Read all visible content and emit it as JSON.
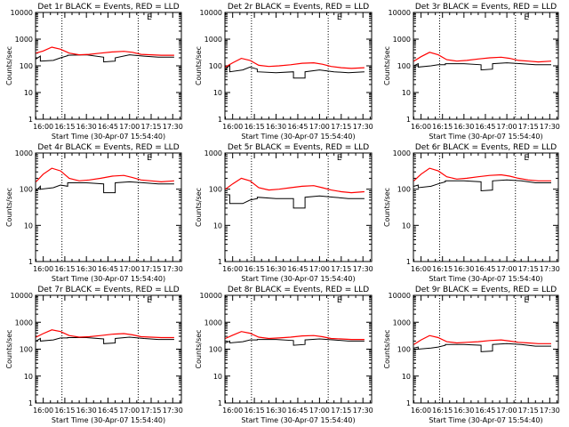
{
  "figure": {
    "xlabel": "Start Time (30-Apr-07 15:54:40)",
    "colors": {
      "events": "#000000",
      "lld": "#ff0000",
      "frame": "#000000",
      "background": "#ffffff"
    }
  },
  "chart_data": [
    {
      "type": "line",
      "title": "Det 1r BLACK = Events, RED = LLD",
      "ylabel": "Counts/sec",
      "yscale": "log",
      "ylim": [
        1,
        10000
      ],
      "yticks": [
        1,
        10,
        100,
        1000,
        10000
      ],
      "yticklabels": [
        "1",
        "10",
        "100",
        "1000",
        "10000"
      ],
      "xlim": [
        "15:54:40",
        "17:36:00"
      ],
      "xticks": [
        "16:00",
        "16:15",
        "16:30",
        "16:45",
        "17:00",
        "17:15",
        "17:30"
      ],
      "vlines": [
        "16:13",
        "17:06"
      ],
      "marker_label": "E",
      "marker_x": "17:12",
      "series": [
        {
          "name": "Events",
          "color": "#000000",
          "x": [
            "15:55",
            "15:58",
            "15:58",
            "16:07",
            "16:12",
            "16:17",
            "16:17",
            "16:30",
            "16:42",
            "16:42",
            "16:50",
            "16:50",
            "17:00",
            "17:10",
            "17:20",
            "17:31"
          ],
          "values": [
            180,
            230,
            150,
            160,
            200,
            240,
            250,
            260,
            210,
            140,
            150,
            200,
            260,
            230,
            210,
            210
          ]
        },
        {
          "name": "LLD",
          "color": "#ff0000",
          "x": [
            "15:55",
            "16:00",
            "16:06",
            "16:12",
            "16:18",
            "16:25",
            "16:32",
            "16:40",
            "16:48",
            "16:56",
            "17:02",
            "17:08",
            "17:15",
            "17:22",
            "17:31"
          ],
          "values": [
            300,
            360,
            500,
            420,
            300,
            260,
            270,
            300,
            330,
            350,
            320,
            270,
            260,
            250,
            250
          ]
        }
      ]
    },
    {
      "type": "line",
      "title": "Det 2r BLACK = Events, RED = LLD",
      "ylabel": "Counts/sec",
      "yscale": "log",
      "ylim": [
        1,
        10000
      ],
      "yticks": [
        1,
        10,
        100,
        1000,
        10000
      ],
      "yticklabels": [
        "1",
        "10",
        "100",
        "1000",
        "10000"
      ],
      "xlim": [
        "15:54:40",
        "17:36:00"
      ],
      "xticks": [
        "16:00",
        "16:15",
        "16:30",
        "16:45",
        "17:00",
        "17:15",
        "17:30"
      ],
      "vlines": [
        "16:13",
        "17:06"
      ],
      "marker_label": "E",
      "marker_x": "17:12",
      "series": [
        {
          "name": "Events",
          "color": "#000000",
          "x": [
            "15:55",
            "15:58",
            "15:58",
            "16:07",
            "16:12",
            "16:17",
            "16:17",
            "16:30",
            "16:42",
            "16:42",
            "16:50",
            "16:50",
            "17:00",
            "17:10",
            "17:20",
            "17:31"
          ],
          "values": [
            70,
            110,
            60,
            70,
            90,
            75,
            60,
            55,
            60,
            35,
            35,
            60,
            70,
            60,
            55,
            60
          ]
        },
        {
          "name": "LLD",
          "color": "#ff0000",
          "x": [
            "15:55",
            "16:00",
            "16:06",
            "16:12",
            "16:18",
            "16:25",
            "16:32",
            "16:40",
            "16:48",
            "16:56",
            "17:02",
            "17:08",
            "17:15",
            "17:22",
            "17:31"
          ],
          "values": [
            90,
            130,
            190,
            160,
            105,
            95,
            100,
            110,
            125,
            130,
            115,
            95,
            85,
            80,
            85
          ]
        }
      ]
    },
    {
      "type": "line",
      "title": "Det 3r BLACK = Events, RED = LLD",
      "ylabel": "Counts/sec",
      "yscale": "log",
      "ylim": [
        1,
        10000
      ],
      "yticks": [
        1,
        10,
        100,
        1000,
        10000
      ],
      "yticklabels": [
        "1",
        "10",
        "100",
        "1000",
        "10000"
      ],
      "xlim": [
        "15:54:40",
        "17:36:00"
      ],
      "xticks": [
        "16:00",
        "16:15",
        "16:30",
        "16:45",
        "17:00",
        "17:15",
        "17:30"
      ],
      "vlines": [
        "16:13",
        "17:06"
      ],
      "marker_label": "E",
      "marker_x": "17:12",
      "series": [
        {
          "name": "Events",
          "color": "#000000",
          "x": [
            "15:55",
            "15:58",
            "15:58",
            "16:07",
            "16:12",
            "16:17",
            "16:17",
            "16:30",
            "16:42",
            "16:42",
            "16:50",
            "16:50",
            "17:00",
            "17:10",
            "17:20",
            "17:31"
          ],
          "values": [
            100,
            120,
            90,
            100,
            110,
            110,
            120,
            120,
            110,
            70,
            75,
            120,
            130,
            120,
            110,
            110
          ]
        },
        {
          "name": "LLD",
          "color": "#ff0000",
          "x": [
            "15:55",
            "16:00",
            "16:06",
            "16:12",
            "16:18",
            "16:25",
            "16:32",
            "16:40",
            "16:48",
            "16:56",
            "17:02",
            "17:08",
            "17:15",
            "17:22",
            "17:31"
          ],
          "values": [
            150,
            220,
            320,
            260,
            170,
            150,
            160,
            180,
            200,
            210,
            190,
            160,
            150,
            140,
            150
          ]
        }
      ]
    },
    {
      "type": "line",
      "title": "Det 4r BLACK = Events, RED = LLD",
      "ylabel": "Counts/sec",
      "yscale": "log",
      "ylim": [
        1,
        1000
      ],
      "yticks": [
        1,
        10,
        100,
        1000
      ],
      "yticklabels": [
        "1",
        "10",
        "100",
        "1000"
      ],
      "xlim": [
        "15:54:40",
        "17:36:00"
      ],
      "xticks": [
        "16:00",
        "16:15",
        "16:30",
        "16:45",
        "17:00",
        "17:15",
        "17:30"
      ],
      "vlines": [
        "16:13",
        "17:06"
      ],
      "marker_label": "E",
      "marker_x": "17:12",
      "series": [
        {
          "name": "Events",
          "color": "#000000",
          "x": [
            "15:55",
            "15:58",
            "15:58",
            "16:07",
            "16:12",
            "16:17",
            "16:17",
            "16:30",
            "16:42",
            "16:42",
            "16:50",
            "16:50",
            "17:00",
            "17:10",
            "17:20",
            "17:31"
          ],
          "values": [
            90,
            120,
            100,
            110,
            130,
            120,
            150,
            150,
            140,
            80,
            80,
            150,
            160,
            150,
            140,
            140
          ]
        },
        {
          "name": "LLD",
          "color": "#ff0000",
          "x": [
            "15:55",
            "16:00",
            "16:06",
            "16:12",
            "16:18",
            "16:25",
            "16:32",
            "16:40",
            "16:48",
            "16:56",
            "17:02",
            "17:08",
            "17:15",
            "17:22",
            "17:31"
          ],
          "values": [
            160,
            260,
            380,
            320,
            200,
            170,
            180,
            200,
            230,
            240,
            210,
            180,
            170,
            160,
            170
          ]
        }
      ]
    },
    {
      "type": "line",
      "title": "Det 5r BLACK = Events, RED = LLD",
      "ylabel": "Counts/sec",
      "yscale": "log",
      "ylim": [
        1,
        1000
      ],
      "yticks": [
        1,
        10,
        100,
        1000
      ],
      "yticklabels": [
        "1",
        "10",
        "100",
        "1000"
      ],
      "xlim": [
        "15:54:40",
        "17:36:00"
      ],
      "xticks": [
        "16:00",
        "16:15",
        "16:30",
        "16:45",
        "17:00",
        "17:15",
        "17:30"
      ],
      "vlines": [
        "16:13",
        "17:06"
      ],
      "marker_label": "E",
      "marker_x": "17:12",
      "series": [
        {
          "name": "Events",
          "color": "#000000",
          "x": [
            "15:55",
            "15:58",
            "15:58",
            "16:07",
            "16:12",
            "16:17",
            "16:17",
            "16:30",
            "16:42",
            "16:42",
            "16:50",
            "16:50",
            "17:00",
            "17:10",
            "17:20",
            "17:31"
          ],
          "values": [
            70,
            70,
            40,
            40,
            50,
            55,
            60,
            55,
            55,
            30,
            30,
            60,
            65,
            60,
            55,
            55
          ]
        },
        {
          "name": "LLD",
          "color": "#ff0000",
          "x": [
            "15:55",
            "16:00",
            "16:06",
            "16:12",
            "16:18",
            "16:25",
            "16:32",
            "16:40",
            "16:48",
            "16:56",
            "17:02",
            "17:08",
            "17:15",
            "17:22",
            "17:31"
          ],
          "values": [
            100,
            140,
            200,
            170,
            110,
            95,
            100,
            110,
            120,
            125,
            110,
            95,
            85,
            80,
            85
          ]
        }
      ]
    },
    {
      "type": "line",
      "title": "Det 6r BLACK = Events, RED = LLD",
      "ylabel": "Counts/sec",
      "yscale": "log",
      "ylim": [
        1,
        1000
      ],
      "yticks": [
        1,
        10,
        100,
        1000
      ],
      "yticklabels": [
        "1",
        "10",
        "100",
        "1000"
      ],
      "xlim": [
        "15:54:40",
        "17:36:00"
      ],
      "xticks": [
        "16:00",
        "16:15",
        "16:30",
        "16:45",
        "17:00",
        "17:15",
        "17:30"
      ],
      "vlines": [
        "16:13",
        "17:06"
      ],
      "marker_label": "E",
      "marker_x": "17:12",
      "series": [
        {
          "name": "Events",
          "color": "#000000",
          "x": [
            "15:55",
            "15:58",
            "15:58",
            "16:07",
            "16:12",
            "16:17",
            "16:17",
            "16:30",
            "16:42",
            "16:42",
            "16:50",
            "16:50",
            "17:00",
            "17:10",
            "17:20",
            "17:31"
          ],
          "values": [
            120,
            130,
            110,
            120,
            140,
            160,
            170,
            170,
            160,
            90,
            95,
            170,
            180,
            170,
            150,
            150
          ]
        },
        {
          "name": "LLD",
          "color": "#ff0000",
          "x": [
            "15:55",
            "16:00",
            "16:06",
            "16:12",
            "16:18",
            "16:25",
            "16:32",
            "16:40",
            "16:48",
            "16:56",
            "17:02",
            "17:08",
            "17:15",
            "17:22",
            "17:31"
          ],
          "values": [
            170,
            260,
            380,
            320,
            220,
            190,
            200,
            220,
            240,
            250,
            230,
            200,
            180,
            170,
            170
          ]
        }
      ]
    },
    {
      "type": "line",
      "title": "Det 7r BLACK = Events, RED = LLD",
      "ylabel": "Counts/sec",
      "yscale": "log",
      "ylim": [
        1,
        10000
      ],
      "yticks": [
        1,
        10,
        100,
        1000,
        10000
      ],
      "yticklabels": [
        "1",
        "10",
        "100",
        "1000",
        "10000"
      ],
      "xlim": [
        "15:54:40",
        "17:36:00"
      ],
      "xticks": [
        "16:00",
        "16:15",
        "16:30",
        "16:45",
        "17:00",
        "17:15",
        "17:30"
      ],
      "vlines": [
        "16:13",
        "17:06"
      ],
      "marker_label": "E",
      "marker_x": "17:12",
      "series": [
        {
          "name": "Events",
          "color": "#000000",
          "x": [
            "15:55",
            "15:58",
            "15:58",
            "16:07",
            "16:12",
            "16:17",
            "16:17",
            "16:30",
            "16:42",
            "16:42",
            "16:50",
            "16:50",
            "17:00",
            "17:10",
            "17:20",
            "17:31"
          ],
          "values": [
            200,
            250,
            200,
            220,
            260,
            260,
            270,
            270,
            240,
            160,
            170,
            250,
            280,
            250,
            230,
            230
          ]
        },
        {
          "name": "LLD",
          "color": "#ff0000",
          "x": [
            "15:55",
            "16:00",
            "16:06",
            "16:12",
            "16:18",
            "16:25",
            "16:32",
            "16:40",
            "16:48",
            "16:56",
            "17:02",
            "17:08",
            "17:15",
            "17:22",
            "17:31"
          ],
          "values": [
            280,
            380,
            520,
            450,
            320,
            280,
            290,
            320,
            360,
            380,
            340,
            290,
            280,
            270,
            270
          ]
        }
      ]
    },
    {
      "type": "line",
      "title": "Det 8r BLACK = Events, RED = LLD",
      "ylabel": "Counts/sec",
      "yscale": "log",
      "ylim": [
        1,
        10000
      ],
      "yticks": [
        1,
        10,
        100,
        1000,
        10000
      ],
      "yticklabels": [
        "1",
        "10",
        "100",
        "1000",
        "10000"
      ],
      "xlim": [
        "15:54:40",
        "17:36:00"
      ],
      "xticks": [
        "16:00",
        "16:15",
        "16:30",
        "16:45",
        "17:00",
        "17:15",
        "17:30"
      ],
      "vlines": [
        "16:13",
        "17:06"
      ],
      "marker_label": "E",
      "marker_x": "17:12",
      "series": [
        {
          "name": "Events",
          "color": "#000000",
          "x": [
            "15:55",
            "15:58",
            "15:58",
            "16:07",
            "16:12",
            "16:17",
            "16:17",
            "16:30",
            "16:42",
            "16:42",
            "16:50",
            "16:50",
            "17:00",
            "17:10",
            "17:20",
            "17:31"
          ],
          "values": [
            170,
            200,
            170,
            190,
            220,
            220,
            230,
            230,
            210,
            140,
            150,
            220,
            240,
            220,
            200,
            200
          ]
        },
        {
          "name": "LLD",
          "color": "#ff0000",
          "x": [
            "15:55",
            "16:00",
            "16:06",
            "16:12",
            "16:18",
            "16:25",
            "16:32",
            "16:40",
            "16:48",
            "16:56",
            "17:02",
            "17:08",
            "17:15",
            "17:22",
            "17:31"
          ],
          "values": [
            250,
            330,
            450,
            390,
            280,
            250,
            260,
            280,
            310,
            320,
            290,
            250,
            240,
            230,
            230
          ]
        }
      ]
    },
    {
      "type": "line",
      "title": "Det 9r BLACK = Events, RED = LLD",
      "ylabel": "Counts/sec",
      "yscale": "log",
      "ylim": [
        1,
        10000
      ],
      "yticks": [
        1,
        10,
        100,
        1000,
        10000
      ],
      "yticklabels": [
        "1",
        "10",
        "100",
        "1000",
        "10000"
      ],
      "xlim": [
        "15:54:40",
        "17:36:00"
      ],
      "xticks": [
        "16:00",
        "16:15",
        "16:30",
        "16:45",
        "17:00",
        "17:15",
        "17:30"
      ],
      "vlines": [
        "16:13",
        "17:06"
      ],
      "marker_label": "E",
      "marker_x": "17:12",
      "series": [
        {
          "name": "Events",
          "color": "#000000",
          "x": [
            "15:55",
            "15:58",
            "15:58",
            "16:07",
            "16:12",
            "16:17",
            "16:17",
            "16:30",
            "16:42",
            "16:42",
            "16:50",
            "16:50",
            "17:00",
            "17:10",
            "17:20",
            "17:31"
          ],
          "values": [
            110,
            120,
            100,
            110,
            120,
            140,
            150,
            150,
            140,
            80,
            85,
            150,
            160,
            150,
            130,
            130
          ]
        },
        {
          "name": "LLD",
          "color": "#ff0000",
          "x": [
            "15:55",
            "16:00",
            "16:06",
            "16:12",
            "16:18",
            "16:25",
            "16:32",
            "16:40",
            "16:48",
            "16:56",
            "17:02",
            "17:08",
            "17:15",
            "17:22",
            "17:31"
          ],
          "values": [
            150,
            220,
            320,
            270,
            190,
            170,
            180,
            190,
            210,
            220,
            200,
            180,
            170,
            160,
            160
          ]
        }
      ]
    }
  ]
}
